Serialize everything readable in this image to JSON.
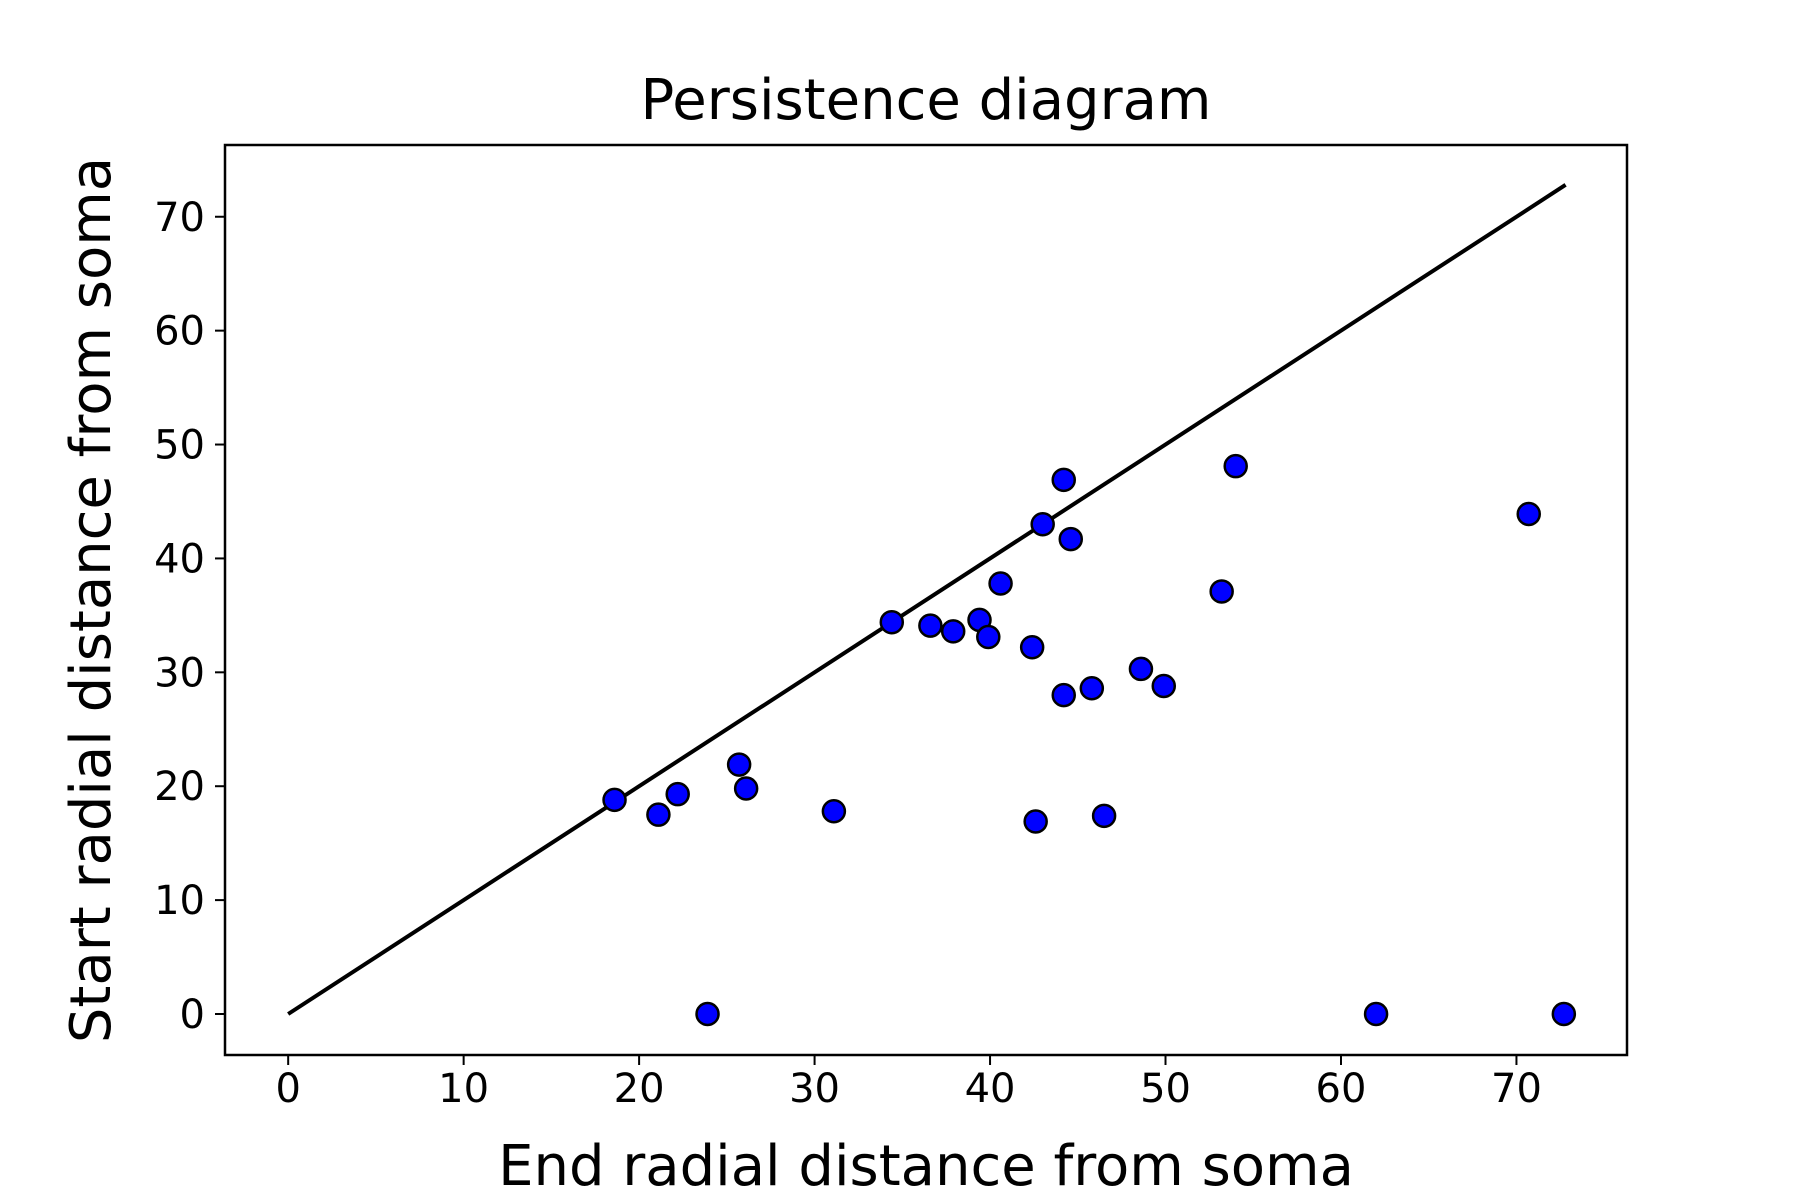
{
  "chart_data": {
    "type": "scatter",
    "title": "Persistence diagram",
    "xlabel": "End radial distance from soma",
    "ylabel": "Start radial distance from soma",
    "xlim": [
      -3.6,
      76.3
    ],
    "ylim": [
      -3.6,
      76.3
    ],
    "xticks": [
      0,
      10,
      20,
      30,
      40,
      50,
      60,
      70
    ],
    "yticks": [
      0,
      10,
      20,
      30,
      40,
      50,
      60,
      70
    ],
    "grid": false,
    "diagonal": {
      "from": [
        0,
        0
      ],
      "to": [
        72.8,
        72.8
      ],
      "color": "#000000"
    },
    "series": [
      {
        "marker_color": "#0000ff",
        "edge_color": "#000000",
        "points": [
          [
            18.6,
            18.8
          ],
          [
            21.1,
            17.5
          ],
          [
            22.2,
            19.3
          ],
          [
            23.9,
            0.0
          ],
          [
            25.7,
            21.9
          ],
          [
            26.1,
            19.8
          ],
          [
            31.1,
            17.8
          ],
          [
            34.4,
            34.4
          ],
          [
            36.6,
            34.1
          ],
          [
            37.9,
            33.6
          ],
          [
            39.4,
            34.6
          ],
          [
            39.9,
            33.1
          ],
          [
            40.6,
            37.8
          ],
          [
            42.4,
            32.2
          ],
          [
            42.6,
            16.9
          ],
          [
            43.0,
            43.0
          ],
          [
            44.2,
            46.9
          ],
          [
            44.2,
            28.0
          ],
          [
            44.6,
            41.7
          ],
          [
            45.8,
            28.6
          ],
          [
            46.5,
            17.4
          ],
          [
            48.6,
            30.3
          ],
          [
            49.9,
            28.8
          ],
          [
            53.2,
            37.1
          ],
          [
            54.0,
            48.1
          ],
          [
            62.0,
            0.0
          ],
          [
            70.7,
            43.9
          ],
          [
            72.7,
            0.0
          ]
        ]
      }
    ]
  }
}
